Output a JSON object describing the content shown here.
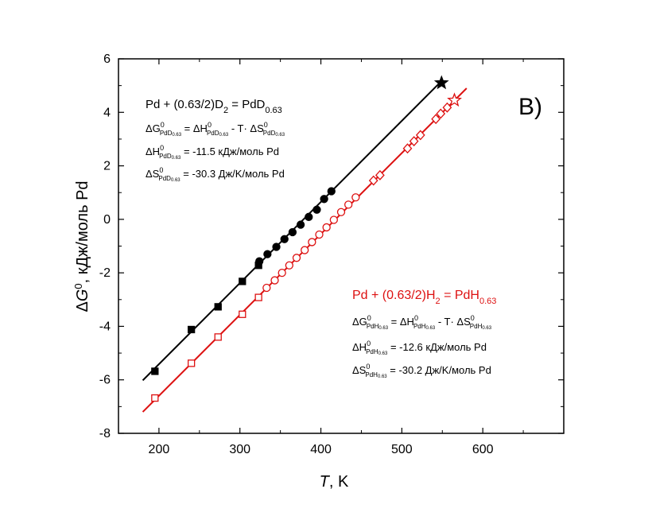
{
  "chart_data": {
    "type": "scatter",
    "panel_label": "B)",
    "xlim": [
      150,
      700
    ],
    "ylim": [
      -8,
      6
    ],
    "x_ticks": [
      200,
      300,
      400,
      500,
      600
    ],
    "y_ticks": [
      -8,
      -6,
      -4,
      -2,
      0,
      2,
      4,
      6
    ],
    "xlabel": {
      "var": "T",
      "unit": ", K"
    },
    "ylabel": {
      "delta": "Δ",
      "var": "G",
      "sup": "0",
      "unit": ", кДж/моль Pd"
    },
    "grid": false,
    "colors": {
      "deuteride": "#000000",
      "hydride": "#dd1111"
    },
    "series": [
      {
        "name": "PdD0.63",
        "color": "#000000",
        "fit_line": {
          "x": [
            180,
            550
          ],
          "y": [
            -6.02,
            5.2
          ]
        },
        "squares_filled": [
          {
            "x": 195,
            "y": -5.68
          },
          {
            "x": 240,
            "y": -4.12
          },
          {
            "x": 273,
            "y": -3.27
          },
          {
            "x": 303,
            "y": -2.32
          },
          {
            "x": 323,
            "y": -1.72
          }
        ],
        "circles_filled": [
          {
            "x": 324,
            "y": -1.57
          },
          {
            "x": 334,
            "y": -1.3
          },
          {
            "x": 345,
            "y": -1.03
          },
          {
            "x": 355,
            "y": -0.74
          },
          {
            "x": 365,
            "y": -0.48
          },
          {
            "x": 375,
            "y": -0.2
          },
          {
            "x": 385,
            "y": 0.09
          },
          {
            "x": 395,
            "y": 0.36
          },
          {
            "x": 404,
            "y": 0.76
          },
          {
            "x": 413,
            "y": 1.05
          }
        ],
        "stars_filled": [
          {
            "x": 549,
            "y": 5.1
          }
        ]
      },
      {
        "name": "PdH0.63",
        "color": "#dd1111",
        "fit_line": {
          "x": [
            180,
            580
          ],
          "y": [
            -7.2,
            4.9
          ]
        },
        "squares_open": [
          {
            "x": 195,
            "y": -6.68
          },
          {
            "x": 240,
            "y": -5.38
          },
          {
            "x": 273,
            "y": -4.4
          },
          {
            "x": 303,
            "y": -3.55
          },
          {
            "x": 323,
            "y": -2.92
          }
        ],
        "circles_open": [
          {
            "x": 333,
            "y": -2.56
          },
          {
            "x": 343,
            "y": -2.28
          },
          {
            "x": 352,
            "y": -2.0
          },
          {
            "x": 361,
            "y": -1.72
          },
          {
            "x": 370,
            "y": -1.44
          },
          {
            "x": 380,
            "y": -1.15
          },
          {
            "x": 389,
            "y": -0.85
          },
          {
            "x": 398,
            "y": -0.57
          },
          {
            "x": 407,
            "y": -0.3
          },
          {
            "x": 416,
            "y": -0.02
          },
          {
            "x": 425,
            "y": 0.27
          },
          {
            "x": 434,
            "y": 0.55
          },
          {
            "x": 443,
            "y": 0.82
          }
        ],
        "diamonds_open": [
          {
            "x": 465,
            "y": 1.45
          },
          {
            "x": 473,
            "y": 1.65
          },
          {
            "x": 507,
            "y": 2.65
          },
          {
            "x": 515,
            "y": 2.92
          },
          {
            "x": 523,
            "y": 3.15
          },
          {
            "x": 542,
            "y": 3.75
          },
          {
            "x": 548,
            "y": 3.95
          },
          {
            "x": 556,
            "y": 4.18
          }
        ],
        "stars_open": [
          {
            "x": 565,
            "y": 4.45
          }
        ]
      }
    ]
  },
  "annotations": {
    "deuteride": {
      "reaction": {
        "a": "Pd + (0.63/2)D",
        "b": "2",
        "c": " = PdD",
        "d": "0.63"
      },
      "line1": {
        "a": "ΔG",
        "sup": "0",
        "sub": "PdD",
        "sub2": "0.63",
        "b": " = ΔH",
        "sup2": "0",
        "sub3": "PdD",
        "sub4": "0.63",
        "c": " - T· ΔS",
        "sup3": "0",
        "sub5": "PdD",
        "sub6": "0.63"
      },
      "line2": {
        "a": "ΔH",
        "sup": "0",
        "sub": "PdD",
        "sub2": "0.63",
        "b": " = -11.5 кДж/моль Pd"
      },
      "line3": {
        "a": "ΔS",
        "sup": "0",
        "sub": "PdD",
        "sub2": "0.63",
        "b": " = -30.3 Дж/K/моль Pd"
      }
    },
    "hydride": {
      "reaction": {
        "a": "Pd + (0.63/2)H",
        "b": "2",
        "c": " = PdH",
        "d": "0.63"
      },
      "line1": {
        "a": "ΔG",
        "sup": "0",
        "sub": "PdH",
        "sub2": "0.63",
        "b": " = ΔH",
        "sup2": "0",
        "sub3": "PdH",
        "sub4": "0.63",
        "c": " - T· ΔS",
        "sup3": "0",
        "sub5": "PdH",
        "sub6": "0.63"
      },
      "line2": {
        "a": "ΔH",
        "sup": "0",
        "sub": "PdH",
        "sub2": "0.63",
        "b": " = -12.6 кДж/моль Pd"
      },
      "line3": {
        "a": "ΔS",
        "sup": "0",
        "sub": "PdH",
        "sub2": "0.63",
        "b": " = -30.2 Дж/K/моль Pd"
      }
    }
  }
}
